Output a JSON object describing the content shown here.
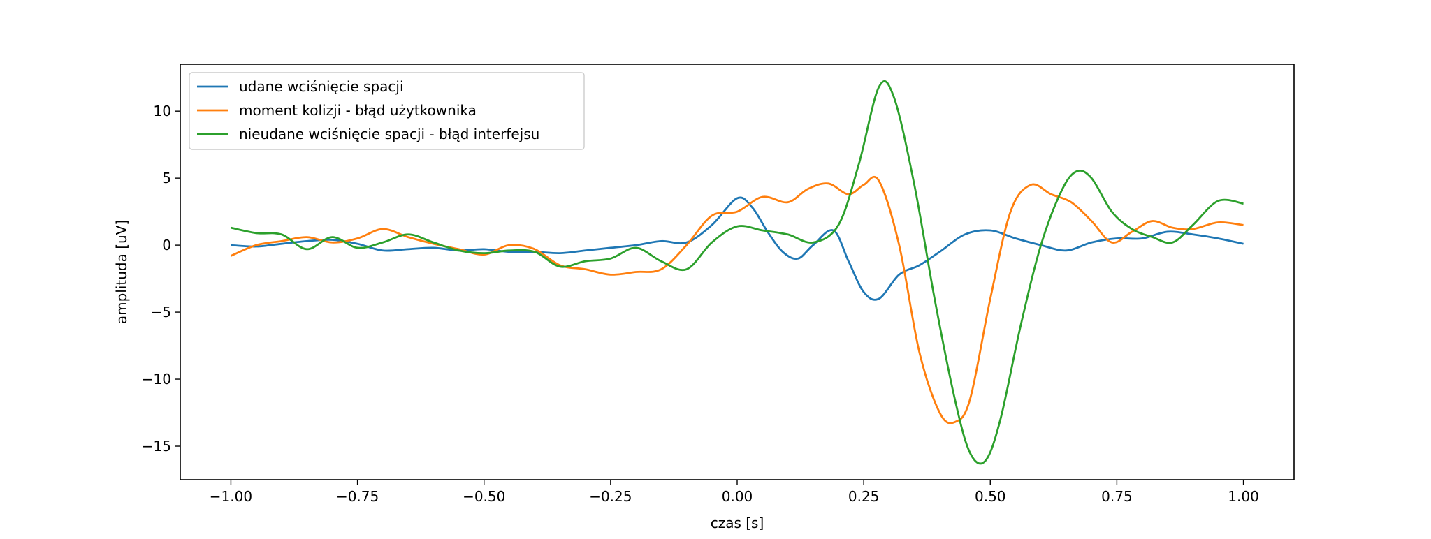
{
  "chart_data": {
    "type": "line",
    "title": "",
    "xlabel": "czas [s]",
    "ylabel": "amplituda [uV]",
    "xlim": [
      -1.1,
      1.1
    ],
    "ylim": [
      -17.5,
      13.5
    ],
    "xticks": [
      -1.0,
      -0.75,
      -0.5,
      -0.25,
      0.0,
      0.25,
      0.5,
      0.75,
      1.0
    ],
    "xtick_labels": [
      "−1.00",
      "−0.75",
      "−0.50",
      "−0.25",
      "0.00",
      "0.25",
      "0.50",
      "0.75",
      "1.00"
    ],
    "yticks": [
      10,
      5,
      0,
      -5,
      -10,
      -15
    ],
    "ytick_labels": [
      "10",
      "5",
      "0",
      "−5",
      "−10",
      "−15"
    ],
    "grid": false,
    "legend_position": "top-left",
    "series": [
      {
        "name": "udane wciśnięcie spacji",
        "color": "#1f77b4",
        "x": [
          -1.0,
          -0.95,
          -0.9,
          -0.85,
          -0.8,
          -0.75,
          -0.7,
          -0.65,
          -0.6,
          -0.55,
          -0.5,
          -0.45,
          -0.4,
          -0.35,
          -0.3,
          -0.25,
          -0.2,
          -0.15,
          -0.1,
          -0.05,
          0.0,
          0.03,
          0.06,
          0.09,
          0.12,
          0.15,
          0.19,
          0.22,
          0.25,
          0.28,
          0.32,
          0.36,
          0.4,
          0.45,
          0.5,
          0.55,
          0.6,
          0.65,
          0.7,
          0.75,
          0.8,
          0.85,
          0.9,
          0.95,
          1.0
        ],
        "y": [
          0.0,
          -0.1,
          0.1,
          0.3,
          0.4,
          0.1,
          -0.4,
          -0.3,
          -0.2,
          -0.4,
          -0.3,
          -0.5,
          -0.5,
          -0.6,
          -0.4,
          -0.2,
          0.0,
          0.3,
          0.2,
          1.5,
          3.5,
          2.8,
          1.0,
          -0.5,
          -1.0,
          0.0,
          1.1,
          -1.2,
          -3.5,
          -4.0,
          -2.2,
          -1.5,
          -0.5,
          0.8,
          1.1,
          0.5,
          0.0,
          -0.4,
          0.2,
          0.5,
          0.5,
          1.0,
          0.8,
          0.5,
          0.1
        ]
      },
      {
        "name": "moment kolizji - błąd użytkownika",
        "color": "#ff7f0e",
        "x": [
          -1.0,
          -0.95,
          -0.9,
          -0.85,
          -0.8,
          -0.75,
          -0.7,
          -0.65,
          -0.6,
          -0.55,
          -0.5,
          -0.45,
          -0.4,
          -0.35,
          -0.3,
          -0.25,
          -0.2,
          -0.15,
          -0.1,
          -0.05,
          0.0,
          0.05,
          0.1,
          0.14,
          0.18,
          0.22,
          0.25,
          0.28,
          0.32,
          0.36,
          0.4,
          0.43,
          0.46,
          0.5,
          0.54,
          0.58,
          0.62,
          0.66,
          0.7,
          0.74,
          0.78,
          0.82,
          0.86,
          0.9,
          0.95,
          1.0
        ],
        "y": [
          -0.8,
          0.0,
          0.3,
          0.6,
          0.2,
          0.5,
          1.2,
          0.6,
          0.1,
          -0.3,
          -0.7,
          0.0,
          -0.3,
          -1.5,
          -1.8,
          -2.2,
          -2.0,
          -1.8,
          0.0,
          2.2,
          2.5,
          3.6,
          3.2,
          4.2,
          4.6,
          3.8,
          4.5,
          4.8,
          0.0,
          -8.0,
          -12.5,
          -13.2,
          -11.5,
          -4.0,
          2.5,
          4.5,
          3.8,
          3.2,
          1.8,
          0.2,
          1.0,
          1.8,
          1.3,
          1.2,
          1.7,
          1.5
        ]
      },
      {
        "name": "nieudane wciśnięcie spacji - błąd interfejsu",
        "color": "#2ca02c",
        "x": [
          -1.0,
          -0.95,
          -0.9,
          -0.85,
          -0.8,
          -0.75,
          -0.7,
          -0.65,
          -0.6,
          -0.55,
          -0.5,
          -0.45,
          -0.4,
          -0.35,
          -0.3,
          -0.25,
          -0.2,
          -0.15,
          -0.1,
          -0.05,
          0.0,
          0.05,
          0.1,
          0.15,
          0.2,
          0.24,
          0.28,
          0.31,
          0.35,
          0.39,
          0.43,
          0.46,
          0.49,
          0.52,
          0.56,
          0.6,
          0.64,
          0.67,
          0.7,
          0.74,
          0.78,
          0.82,
          0.86,
          0.9,
          0.95,
          1.0
        ],
        "y": [
          1.3,
          0.9,
          0.8,
          -0.3,
          0.6,
          -0.2,
          0.2,
          0.8,
          0.2,
          -0.4,
          -0.6,
          -0.4,
          -0.5,
          -1.6,
          -1.2,
          -1.0,
          -0.2,
          -1.2,
          -1.8,
          0.2,
          1.4,
          1.1,
          0.8,
          0.2,
          1.5,
          6.0,
          11.8,
          11.0,
          4.5,
          -4.0,
          -11.5,
          -15.5,
          -16.1,
          -13.0,
          -6.0,
          0.0,
          4.0,
          5.5,
          5.0,
          2.5,
          1.2,
          0.6,
          0.2,
          1.5,
          3.3,
          3.1
        ]
      }
    ]
  }
}
